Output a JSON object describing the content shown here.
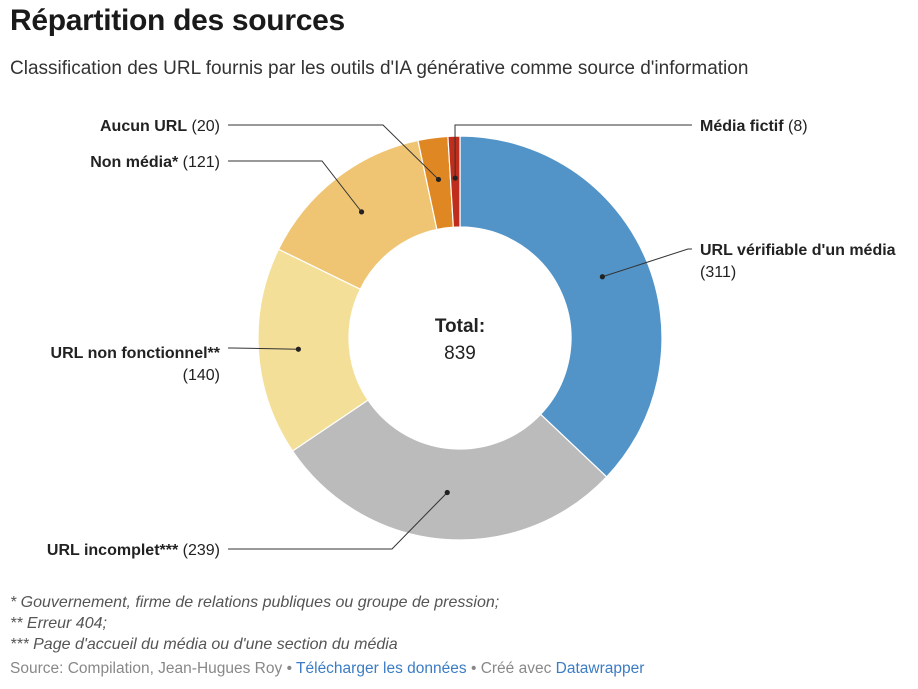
{
  "title": "Répartition des sources",
  "subtitle": "Classification des URL fournis par les outils d'IA générative comme source d'information",
  "center": {
    "label": "Total:",
    "value": "839"
  },
  "chart_data": {
    "type": "pie",
    "variant": "donut",
    "title": "Répartition des sources",
    "subtitle": "Classification des URL fournis par les outils d'IA générative comme source d'information",
    "total": 839,
    "slices": [
      {
        "name": "URL vérifiable d'un média",
        "value": 311,
        "color": "#5294c7"
      },
      {
        "name": "URL incomplet***",
        "value": 239,
        "color": "#bbbbbb"
      },
      {
        "name": "URL non fonctionnel**",
        "value": 140,
        "color": "#f4df98"
      },
      {
        "name": "Non média*",
        "value": 121,
        "color": "#efc573"
      },
      {
        "name": "Aucun URL",
        "value": 20,
        "color": "#df8722"
      },
      {
        "name": "Média fictif",
        "value": 8,
        "color": "#bf2e1c"
      }
    ]
  },
  "notes": [
    "* Gouvernement, firme de relations publiques ou groupe de pression;",
    "** Erreur 404;",
    "*** Page d'accueil du média ou d'une section du média"
  ],
  "footer": {
    "source": "Source: Compilation, Jean-Hugues Roy",
    "sep1": "•",
    "download": "Télécharger les données",
    "sep2": "•",
    "created": "Créé avec",
    "tool": "Datawrapper"
  }
}
